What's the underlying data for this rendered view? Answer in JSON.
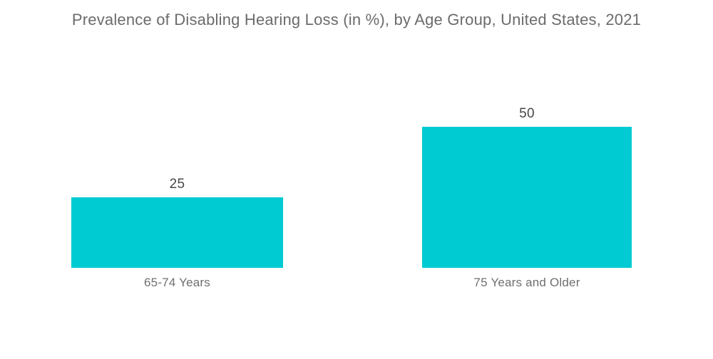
{
  "title": "Prevalence of Disabling Hearing Loss (in %), by Age Group, United States, 2021",
  "colors": {
    "background": "#ffffff",
    "bar": "#00CBD2",
    "title_text": "#6b6b6b",
    "value_text": "#474747",
    "category_text": "#6f6f6f"
  },
  "chart_data": {
    "type": "bar",
    "orientation": "vertical",
    "title": "Prevalence of Disabling Hearing Loss (in %), by Age Group, United States, 2021",
    "categories": [
      "65-74 Years",
      "75 Years and Older"
    ],
    "values": [
      25,
      50
    ],
    "value_labels": [
      "25",
      "50"
    ],
    "xlabel": "",
    "ylabel": "",
    "ylim": [
      0,
      50
    ],
    "grid": false,
    "legend": false,
    "axes_visible": false
  }
}
